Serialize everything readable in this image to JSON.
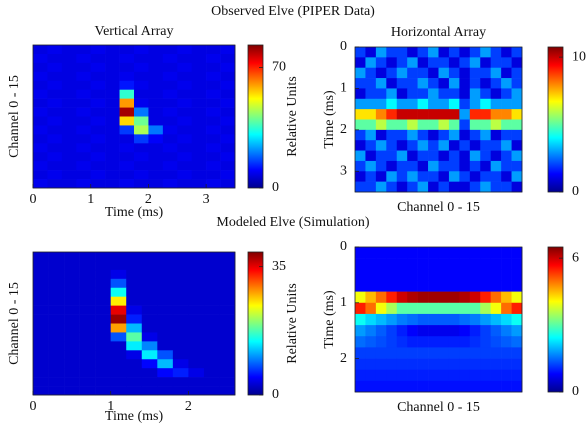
{
  "figure_titles": [
    "Observed Elve (PIPER Data)",
    "Modeled Elve (Simulation)"
  ],
  "chart_data": [
    {
      "type": "heatmap",
      "title": "Vertical Array",
      "xlabel": "Time (ms)",
      "ylabel": "Channel 0 - 15",
      "colorbar_label": "Relative Units",
      "colormap": "jet",
      "xlim": [
        0,
        3.5
      ],
      "xticks": [
        0,
        1,
        2,
        3
      ],
      "clim": [
        0,
        83
      ],
      "cticks": [
        0,
        70
      ],
      "values": [
        [
          8,
          9,
          8,
          8,
          9,
          8,
          8,
          9,
          8,
          8,
          9,
          8,
          8,
          9
        ],
        [
          9,
          8,
          8,
          9,
          8,
          8,
          9,
          8,
          8,
          9,
          8,
          8,
          9,
          8
        ],
        [
          8,
          9,
          8,
          8,
          9,
          8,
          8,
          9,
          8,
          8,
          9,
          8,
          8,
          9
        ],
        [
          9,
          8,
          8,
          9,
          8,
          8,
          9,
          8,
          8,
          9,
          8,
          8,
          9,
          8
        ],
        [
          8,
          9,
          8,
          8,
          9,
          8,
          12,
          9,
          8,
          8,
          9,
          8,
          8,
          9
        ],
        [
          9,
          8,
          8,
          9,
          8,
          8,
          35,
          8,
          8,
          9,
          8,
          8,
          9,
          8
        ],
        [
          8,
          9,
          8,
          8,
          9,
          8,
          60,
          9,
          8,
          8,
          9,
          8,
          8,
          9
        ],
        [
          9,
          8,
          8,
          9,
          8,
          8,
          80,
          20,
          8,
          9,
          8,
          8,
          9,
          8
        ],
        [
          8,
          9,
          8,
          8,
          9,
          8,
          55,
          40,
          8,
          8,
          9,
          8,
          8,
          9
        ],
        [
          9,
          8,
          8,
          9,
          8,
          8,
          15,
          45,
          20,
          9,
          8,
          8,
          9,
          8
        ],
        [
          8,
          9,
          8,
          8,
          9,
          8,
          8,
          15,
          10,
          8,
          9,
          8,
          8,
          9
        ],
        [
          9,
          8,
          8,
          9,
          8,
          8,
          9,
          8,
          8,
          9,
          8,
          8,
          9,
          8
        ],
        [
          8,
          9,
          8,
          8,
          9,
          8,
          8,
          9,
          8,
          8,
          9,
          8,
          8,
          9
        ],
        [
          9,
          8,
          8,
          9,
          8,
          8,
          9,
          8,
          8,
          9,
          8,
          8,
          9,
          8
        ],
        [
          8,
          9,
          8,
          8,
          9,
          8,
          8,
          9,
          8,
          8,
          9,
          8,
          8,
          9
        ],
        [
          9,
          8,
          8,
          9,
          8,
          8,
          9,
          8,
          8,
          9,
          8,
          8,
          9,
          8
        ]
      ]
    },
    {
      "type": "heatmap",
      "title": "Horizontal Array",
      "xlabel": "Channel 0 - 15",
      "ylabel": "Time (ms)",
      "colormap": "jet",
      "ylim": [
        0,
        3.5
      ],
      "yticks": [
        0,
        1,
        2,
        3
      ],
      "yreverse": true,
      "clim": [
        0,
        10.75
      ],
      "cticks": [
        0,
        10
      ],
      "values": [
        [
          2,
          1,
          3,
          2,
          2,
          1,
          2,
          3,
          1,
          2,
          1,
          2,
          3,
          2,
          1,
          2
        ],
        [
          1,
          3,
          2,
          1,
          2,
          3,
          1,
          2,
          2,
          1,
          2,
          3,
          1,
          2,
          2,
          1
        ],
        [
          3,
          2,
          1,
          2,
          3,
          2,
          2,
          1,
          3,
          2,
          1,
          2,
          2,
          3,
          1,
          2
        ],
        [
          2,
          2,
          3,
          1,
          2,
          2,
          3,
          2,
          1,
          3,
          1,
          2,
          1,
          2,
          3,
          2
        ],
        [
          1,
          2,
          2,
          3,
          1,
          2,
          2,
          3,
          2,
          2,
          1,
          3,
          2,
          1,
          2,
          3
        ],
        [
          3,
          3,
          3,
          4,
          3,
          3,
          4,
          3,
          3,
          4,
          2,
          3,
          4,
          3,
          3,
          3
        ],
        [
          7,
          7,
          8,
          9,
          10,
          10,
          10,
          10,
          10,
          10,
          3,
          9,
          9,
          8,
          8,
          7
        ],
        [
          5,
          5,
          6,
          5,
          5,
          6,
          5,
          5,
          6,
          5,
          2,
          5,
          5,
          6,
          5,
          5
        ],
        [
          2,
          3,
          1,
          2,
          2,
          3,
          2,
          1,
          2,
          3,
          1,
          2,
          3,
          1,
          2,
          2
        ],
        [
          1,
          2,
          3,
          2,
          1,
          2,
          3,
          2,
          3,
          1,
          2,
          1,
          2,
          2,
          3,
          1
        ],
        [
          3,
          1,
          2,
          2,
          3,
          1,
          2,
          2,
          1,
          2,
          1,
          3,
          2,
          1,
          2,
          3
        ],
        [
          2,
          3,
          2,
          1,
          2,
          2,
          1,
          3,
          2,
          2,
          1,
          2,
          1,
          3,
          2,
          2
        ],
        [
          1,
          2,
          1,
          3,
          2,
          3,
          2,
          2,
          1,
          3,
          2,
          1,
          2,
          2,
          1,
          3
        ],
        [
          2,
          2,
          3,
          2,
          1,
          2,
          3,
          1,
          2,
          1,
          1,
          2,
          3,
          2,
          2,
          1
        ]
      ]
    },
    {
      "type": "heatmap",
      "xlabel": "Time (ms)",
      "ylabel": "Channel 0 - 15",
      "colorbar_label": "Relative Units",
      "colormap": "jet",
      "xlim": [
        0,
        2.6
      ],
      "xticks": [
        0,
        1,
        2
      ],
      "clim": [
        0,
        39
      ],
      "cticks": [
        0,
        35
      ],
      "values": [
        [
          3,
          3,
          3,
          3,
          3,
          3,
          3,
          3,
          3,
          3,
          3,
          3,
          3
        ],
        [
          3,
          3,
          3,
          3,
          3,
          3,
          3,
          3,
          3,
          3,
          3,
          3,
          3
        ],
        [
          3,
          3,
          3,
          3,
          3,
          4,
          3,
          3,
          3,
          3,
          3,
          3,
          3
        ],
        [
          3,
          3,
          3,
          3,
          3,
          8,
          3,
          3,
          3,
          3,
          3,
          3,
          3
        ],
        [
          3,
          3,
          3,
          3,
          3,
          15,
          3,
          3,
          3,
          3,
          3,
          3,
          3
        ],
        [
          3,
          3,
          3,
          3,
          3,
          25,
          3,
          3,
          3,
          3,
          3,
          3,
          3
        ],
        [
          3,
          3,
          3,
          3,
          3,
          35,
          4,
          3,
          3,
          3,
          3,
          3,
          3
        ],
        [
          3,
          3,
          3,
          3,
          3,
          38,
          6,
          3,
          3,
          3,
          3,
          3,
          3
        ],
        [
          3,
          3,
          3,
          3,
          3,
          28,
          12,
          3,
          3,
          3,
          3,
          3,
          3
        ],
        [
          3,
          3,
          3,
          3,
          3,
          8,
          18,
          4,
          3,
          3,
          3,
          3,
          3
        ],
        [
          3,
          3,
          3,
          3,
          3,
          3,
          14,
          10,
          3,
          3,
          3,
          3,
          3
        ],
        [
          3,
          3,
          3,
          3,
          3,
          3,
          4,
          14,
          8,
          3,
          3,
          3,
          3
        ],
        [
          3,
          3,
          3,
          3,
          3,
          3,
          3,
          5,
          12,
          4,
          3,
          3,
          3
        ],
        [
          3,
          3,
          3,
          3,
          3,
          3,
          3,
          3,
          5,
          6,
          4,
          3,
          3
        ],
        [
          3,
          3,
          3,
          3,
          3,
          3,
          3,
          3,
          3,
          3,
          3,
          3,
          3
        ],
        [
          3,
          3,
          3,
          3,
          3,
          3,
          3,
          3,
          3,
          3,
          3,
          3,
          3
        ]
      ]
    },
    {
      "type": "heatmap",
      "xlabel": "Channel 0 - 15",
      "ylabel": "Time (ms)",
      "colormap": "jet",
      "ylim": [
        0,
        2.6
      ],
      "yticks": [
        0,
        1,
        2
      ],
      "yreverse": true,
      "clim": [
        0,
        6.5
      ],
      "cticks": [
        0,
        6
      ],
      "values": [
        [
          0.8,
          0.8,
          0.8,
          0.8,
          0.8,
          0.8,
          0.8,
          0.8,
          0.8,
          0.8,
          0.8,
          0.8,
          0.8,
          0.8,
          0.8,
          0.8
        ],
        [
          0.8,
          0.8,
          0.8,
          0.8,
          0.8,
          0.8,
          0.8,
          0.8,
          0.8,
          0.8,
          0.8,
          0.8,
          0.8,
          0.8,
          0.8,
          0.8
        ],
        [
          0.8,
          0.8,
          0.8,
          0.8,
          0.8,
          0.8,
          0.8,
          0.8,
          0.8,
          0.8,
          0.8,
          0.8,
          0.8,
          0.8,
          0.8,
          0.8
        ],
        [
          0.8,
          0.8,
          0.8,
          0.8,
          0.8,
          0.8,
          0.8,
          0.8,
          0.8,
          0.8,
          0.8,
          0.8,
          0.8,
          0.8,
          0.8,
          0.8
        ],
        [
          4,
          4.5,
          5,
          5.5,
          6,
          6.2,
          6.3,
          6.3,
          6.3,
          6.3,
          6.2,
          6,
          5.5,
          5,
          4.5,
          4
        ],
        [
          5.5,
          5,
          4,
          3.5,
          3,
          3,
          3,
          3,
          3,
          3,
          3,
          3,
          3.5,
          4,
          5,
          5.5
        ],
        [
          2.5,
          2.2,
          2,
          1.8,
          1.6,
          1.5,
          1.4,
          1.4,
          1.4,
          1.4,
          1.5,
          1.6,
          1.8,
          2,
          2.2,
          2.5
        ],
        [
          1.8,
          1.6,
          1.4,
          1.2,
          1,
          0.8,
          0.7,
          0.7,
          0.7,
          0.7,
          0.8,
          1,
          1.2,
          1.4,
          1.6,
          1.8
        ],
        [
          1.5,
          1.4,
          1.3,
          1.2,
          1.1,
          1,
          1,
          1,
          1,
          1,
          1,
          1.1,
          1.2,
          1.3,
          1.4,
          1.5
        ],
        [
          1.2,
          1.2,
          1.2,
          1.2,
          1.2,
          1.2,
          1.2,
          1.2,
          1.2,
          1.2,
          1.2,
          1.2,
          1.2,
          1.2,
          1.2,
          1.2
        ],
        [
          1.1,
          1.1,
          1.1,
          1.1,
          1.1,
          1.1,
          1.1,
          1.1,
          1.1,
          1.1,
          1.1,
          1.1,
          1.1,
          1.1,
          1.1,
          1.1
        ],
        [
          1,
          1,
          1,
          1,
          1,
          1,
          1,
          1,
          1,
          1,
          1,
          1,
          1,
          1,
          1,
          1
        ],
        [
          0.9,
          0.9,
          0.9,
          0.9,
          0.9,
          0.9,
          0.9,
          0.9,
          0.9,
          0.9,
          0.9,
          0.9,
          0.9,
          0.9,
          0.9,
          0.9
        ]
      ]
    }
  ]
}
